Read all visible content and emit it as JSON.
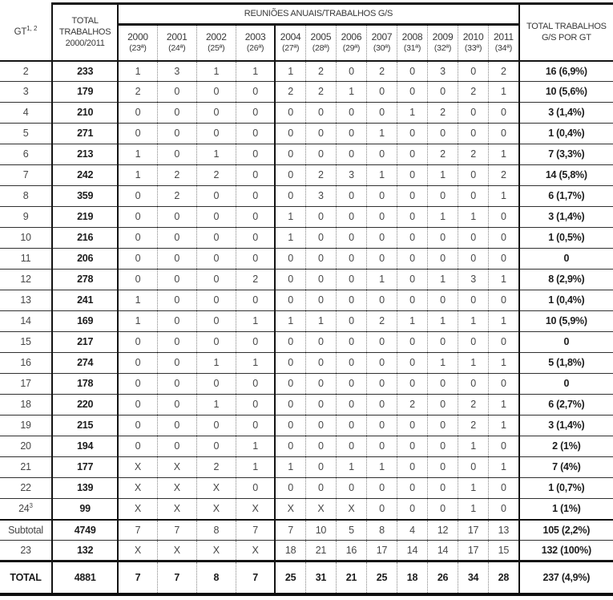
{
  "table": {
    "headers": {
      "corner_label": "GT",
      "corner_sup": "1, 2",
      "total_works": "TOTAL TRABALHOS 2000/2011",
      "group": "REUNIÕES ANUAIS/TRABALHOS G/S",
      "total_gs": "TOTAL TRABALHOS G/S POR GT"
    },
    "year_headers": [
      {
        "year": "2000",
        "session": "(23ª)"
      },
      {
        "year": "2001",
        "session": "(24ª)"
      },
      {
        "year": "2002",
        "session": "(25ª)"
      },
      {
        "year": "2003",
        "session": "(26ª)"
      },
      {
        "year": "2004",
        "session": "(27ª)"
      },
      {
        "year": "2005",
        "session": "(28ª)"
      },
      {
        "year": "2006",
        "session": "(29ª)"
      },
      {
        "year": "2007",
        "session": "(30ª)"
      },
      {
        "year": "2008",
        "session": "(31ª)"
      },
      {
        "year": "2009",
        "session": "(32ª)"
      },
      {
        "year": "2010",
        "session": "(33ª)"
      },
      {
        "year": "2011",
        "session": "(34ª)"
      }
    ],
    "rows": [
      {
        "gt": "2",
        "total": "233",
        "values": [
          "1",
          "3",
          "1",
          "1",
          "1",
          "2",
          "0",
          "2",
          "0",
          "3",
          "0",
          "2"
        ],
        "total_gs": "16 (6,9%)"
      },
      {
        "gt": "3",
        "total": "179",
        "values": [
          "2",
          "0",
          "0",
          "0",
          "2",
          "2",
          "1",
          "0",
          "0",
          "0",
          "2",
          "1"
        ],
        "total_gs": "10 (5,6%)"
      },
      {
        "gt": "4",
        "total": "210",
        "values": [
          "0",
          "0",
          "0",
          "0",
          "0",
          "0",
          "0",
          "0",
          "1",
          "2",
          "0",
          "0"
        ],
        "total_gs": "3 (1,4%)"
      },
      {
        "gt": "5",
        "total": "271",
        "values": [
          "0",
          "0",
          "0",
          "0",
          "0",
          "0",
          "0",
          "1",
          "0",
          "0",
          "0",
          "0"
        ],
        "total_gs": "1 (0,4%)"
      },
      {
        "gt": "6",
        "total": "213",
        "values": [
          "1",
          "0",
          "1",
          "0",
          "0",
          "0",
          "0",
          "0",
          "0",
          "2",
          "2",
          "1"
        ],
        "total_gs": "7 (3,3%)"
      },
      {
        "gt": "7",
        "total": "242",
        "values": [
          "1",
          "2",
          "2",
          "0",
          "0",
          "2",
          "3",
          "1",
          "0",
          "1",
          "0",
          "2"
        ],
        "total_gs": "14 (5,8%)"
      },
      {
        "gt": "8",
        "total": "359",
        "values": [
          "0",
          "2",
          "0",
          "0",
          "0",
          "3",
          "0",
          "0",
          "0",
          "0",
          "0",
          "1"
        ],
        "total_gs": "6 (1,7%)"
      },
      {
        "gt": "9",
        "total": "219",
        "values": [
          "0",
          "0",
          "0",
          "0",
          "1",
          "0",
          "0",
          "0",
          "0",
          "1",
          "1",
          "0"
        ],
        "total_gs": "3 (1,4%)"
      },
      {
        "gt": "10",
        "total": "216",
        "values": [
          "0",
          "0",
          "0",
          "0",
          "1",
          "0",
          "0",
          "0",
          "0",
          "0",
          "0",
          "0"
        ],
        "total_gs": "1 (0,5%)"
      },
      {
        "gt": "11",
        "total": "206",
        "values": [
          "0",
          "0",
          "0",
          "0",
          "0",
          "0",
          "0",
          "0",
          "0",
          "0",
          "0",
          "0"
        ],
        "total_gs": "0"
      },
      {
        "gt": "12",
        "total": "278",
        "values": [
          "0",
          "0",
          "0",
          "2",
          "0",
          "0",
          "0",
          "1",
          "0",
          "1",
          "3",
          "1"
        ],
        "total_gs": "8 (2,9%)"
      },
      {
        "gt": "13",
        "total": "241",
        "values": [
          "1",
          "0",
          "0",
          "0",
          "0",
          "0",
          "0",
          "0",
          "0",
          "0",
          "0",
          "0"
        ],
        "total_gs": "1 (0,4%)"
      },
      {
        "gt": "14",
        "total": "169",
        "values": [
          "1",
          "0",
          "0",
          "1",
          "1",
          "1",
          "0",
          "2",
          "1",
          "1",
          "1",
          "1"
        ],
        "total_gs": "10 (5,9%)"
      },
      {
        "gt": "15",
        "total": "217",
        "values": [
          "0",
          "0",
          "0",
          "0",
          "0",
          "0",
          "0",
          "0",
          "0",
          "0",
          "0",
          "0"
        ],
        "total_gs": "0"
      },
      {
        "gt": "16",
        "total": "274",
        "values": [
          "0",
          "0",
          "1",
          "1",
          "0",
          "0",
          "0",
          "0",
          "0",
          "1",
          "1",
          "1"
        ],
        "total_gs": "5 (1,8%)"
      },
      {
        "gt": "17",
        "total": "178",
        "values": [
          "0",
          "0",
          "0",
          "0",
          "0",
          "0",
          "0",
          "0",
          "0",
          "0",
          "0",
          "0"
        ],
        "total_gs": "0"
      },
      {
        "gt": "18",
        "total": "220",
        "values": [
          "0",
          "0",
          "1",
          "0",
          "0",
          "0",
          "0",
          "0",
          "2",
          "0",
          "2",
          "1"
        ],
        "total_gs": "6 (2,7%)"
      },
      {
        "gt": "19",
        "total": "215",
        "values": [
          "0",
          "0",
          "0",
          "0",
          "0",
          "0",
          "0",
          "0",
          "0",
          "0",
          "2",
          "1"
        ],
        "total_gs": "3 (1,4%)"
      },
      {
        "gt": "20",
        "total": "194",
        "values": [
          "0",
          "0",
          "0",
          "1",
          "0",
          "0",
          "0",
          "0",
          "0",
          "0",
          "1",
          "0"
        ],
        "total_gs": "2 (1%)"
      },
      {
        "gt": "21",
        "total": "177",
        "values": [
          "X",
          "X",
          "2",
          "1",
          "1",
          "0",
          "1",
          "1",
          "0",
          "0",
          "0",
          "1"
        ],
        "total_gs": "7 (4%)"
      },
      {
        "gt": "22",
        "total": "139",
        "values": [
          "X",
          "X",
          "X",
          "0",
          "0",
          "0",
          "0",
          "0",
          "0",
          "0",
          "1",
          "0"
        ],
        "total_gs": "1 (0,7%)"
      },
      {
        "gt": "24",
        "gt_sup": "3",
        "total": "99",
        "values": [
          "X",
          "X",
          "X",
          "X",
          "X",
          "X",
          "X",
          "0",
          "0",
          "0",
          "1",
          "0"
        ],
        "total_gs": "1 (1%)"
      },
      {
        "gt": "Subtotal",
        "type": "subtotal",
        "total": "4749",
        "values": [
          "7",
          "7",
          "8",
          "7",
          "7",
          "10",
          "5",
          "8",
          "4",
          "12",
          "17",
          "13"
        ],
        "total_gs": "105 (2,2%)"
      },
      {
        "gt": "23",
        "total": "132",
        "values": [
          "X",
          "X",
          "X",
          "X",
          "18",
          "21",
          "16",
          "17",
          "14",
          "14",
          "17",
          "15"
        ],
        "total_gs": "132 (100%)"
      },
      {
        "gt": "TOTAL",
        "type": "total",
        "total": "4881",
        "values": [
          "7",
          "7",
          "8",
          "7",
          "25",
          "31",
          "21",
          "25",
          "18",
          "26",
          "34",
          "28"
        ],
        "total_gs": "237 (4,9%)"
      }
    ]
  }
}
